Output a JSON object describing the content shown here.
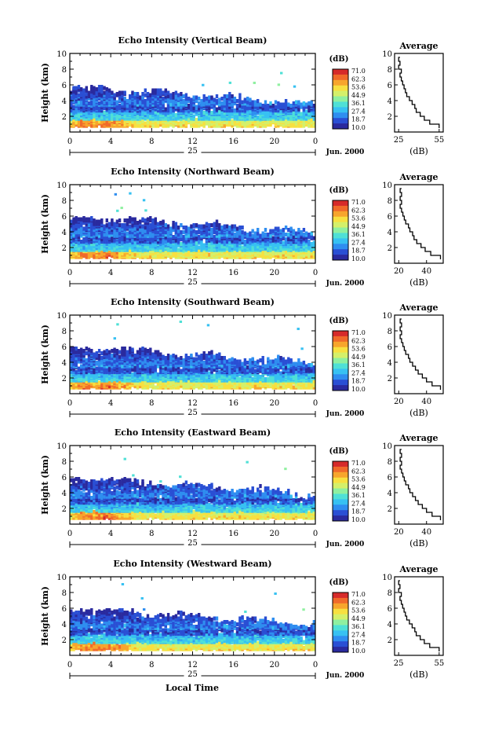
{
  "figure": {
    "xlabel": "Local Time"
  },
  "colorbar": {
    "unit": "(dB)",
    "ticks": [
      "71.0",
      "62.3",
      "53.6",
      "44.9",
      "36.1",
      "27.4",
      "18.7",
      "10.0"
    ],
    "vmin": 10.0,
    "vmax": 71.0,
    "colors": [
      "#2a2a9e",
      "#2a4fd4",
      "#2f8ef0",
      "#37c1f2",
      "#4fe0d6",
      "#8ff0a0",
      "#d4f06a",
      "#f7e040",
      "#f7a52c",
      "#f06a2a",
      "#d62a2a"
    ]
  },
  "chart_data": [
    {
      "type": "heatmap",
      "title": "Echo Intensity (Vertical Beam)",
      "ylabel": "Height (km)",
      "ylim": [
        0,
        10
      ],
      "yticks": [
        2,
        4,
        6,
        8,
        10
      ],
      "xticks": [
        "0",
        "4",
        "8",
        "12",
        "16",
        "20",
        "0"
      ],
      "date_day": "25",
      "date_month": "Jun. 2000",
      "colorbar_label": "(dB)",
      "profile": {
        "title": "Average",
        "xlabel": "(dB)",
        "xticks": [
          "25",
          "55"
        ],
        "xlim": [
          22,
          58
        ],
        "heights": [
          0.5,
          1.0,
          1.5,
          2.0,
          2.5,
          3.0,
          3.5,
          4.0,
          4.5,
          5.0,
          5.5,
          6.0,
          6.5,
          7.0,
          7.5,
          8.0,
          8.5,
          9.0,
          9.5
        ],
        "values": [
          55,
          48,
          44,
          41,
          38,
          37,
          35,
          33,
          31,
          30,
          29,
          28,
          27,
          26,
          27,
          25,
          26,
          25,
          26
        ]
      }
    },
    {
      "type": "heatmap",
      "title": "Echo Intensity (Northward Beam)",
      "ylabel": "Height (km)",
      "ylim": [
        0,
        10
      ],
      "yticks": [
        2,
        4,
        6,
        8,
        10
      ],
      "xticks": [
        "0",
        "4",
        "8",
        "12",
        "16",
        "20",
        "0"
      ],
      "date_day": "25",
      "date_month": "Jun. 2000",
      "colorbar_label": "(dB)",
      "profile": {
        "title": "Average",
        "xlabel": "(dB)",
        "xticks": [
          "20",
          "40"
        ],
        "xlim": [
          17,
          52
        ],
        "heights": [
          0.5,
          1.0,
          1.5,
          2.0,
          2.5,
          3.0,
          3.5,
          4.0,
          4.5,
          5.0,
          5.5,
          6.0,
          6.5,
          7.0,
          7.5,
          8.0,
          8.5,
          9.0,
          9.5
        ],
        "values": [
          50,
          43,
          39,
          36,
          33,
          31,
          30,
          28,
          27,
          25,
          24,
          23,
          22,
          21,
          22,
          21,
          22,
          21,
          22
        ]
      }
    },
    {
      "type": "heatmap",
      "title": "Echo Intensity (Southward Beam)",
      "ylabel": "Height (km)",
      "ylim": [
        0,
        10
      ],
      "yticks": [
        2,
        4,
        6,
        8,
        10
      ],
      "xticks": [
        "0",
        "4",
        "8",
        "12",
        "16",
        "20",
        "0"
      ],
      "date_day": "25",
      "date_month": "Jun. 2000",
      "colorbar_label": "(dB)",
      "profile": {
        "title": "Average",
        "xlabel": "(dB)",
        "xticks": [
          "20",
          "40"
        ],
        "xlim": [
          17,
          52
        ],
        "heights": [
          0.5,
          1.0,
          1.5,
          2.0,
          2.5,
          3.0,
          3.5,
          4.0,
          4.5,
          5.0,
          5.5,
          6.0,
          6.5,
          7.0,
          7.5,
          8.0,
          8.5,
          9.0,
          9.5
        ],
        "values": [
          50,
          44,
          40,
          37,
          34,
          32,
          30,
          28,
          27,
          25,
          24,
          23,
          22,
          21,
          22,
          21,
          22,
          21,
          22
        ]
      }
    },
    {
      "type": "heatmap",
      "title": "Echo Intensity (Eastward Beam)",
      "ylabel": "Height (km)",
      "ylim": [
        0,
        10
      ],
      "yticks": [
        2,
        4,
        6,
        8,
        10
      ],
      "xticks": [
        "0",
        "4",
        "8",
        "12",
        "16",
        "20",
        "0"
      ],
      "date_day": "25",
      "date_month": "Jun. 2000",
      "colorbar_label": "(dB)",
      "profile": {
        "title": "Average",
        "xlabel": "(dB)",
        "xticks": [
          "20",
          "40"
        ],
        "xlim": [
          17,
          52
        ],
        "heights": [
          0.5,
          1.0,
          1.5,
          2.0,
          2.5,
          3.0,
          3.5,
          4.0,
          4.5,
          5.0,
          5.5,
          6.0,
          6.5,
          7.0,
          7.5,
          8.0,
          8.5,
          9.0,
          9.5
        ],
        "values": [
          50,
          44,
          40,
          37,
          34,
          32,
          30,
          28,
          27,
          25,
          24,
          23,
          22,
          21,
          22,
          21,
          22,
          21,
          22
        ]
      }
    },
    {
      "type": "heatmap",
      "title": "Echo Intensity (Westward Beam)",
      "ylabel": "Height (km)",
      "ylim": [
        0,
        10
      ],
      "yticks": [
        2,
        4,
        6,
        8,
        10
      ],
      "xticks": [
        "0",
        "4",
        "8",
        "12",
        "16",
        "20",
        "0"
      ],
      "date_day": "25",
      "date_month": "Jun. 2000",
      "colorbar_label": "(dB)",
      "profile": {
        "title": "Average",
        "xlabel": "(dB)",
        "xticks": [
          "25",
          "55"
        ],
        "xlim": [
          22,
          58
        ],
        "heights": [
          0.5,
          1.0,
          1.5,
          2.0,
          2.5,
          3.0,
          3.5,
          4.0,
          4.5,
          5.0,
          5.5,
          6.0,
          6.5,
          7.0,
          7.5,
          8.0,
          8.5,
          9.0,
          9.5
        ],
        "values": [
          55,
          48,
          44,
          41,
          38,
          37,
          35,
          33,
          31,
          30,
          29,
          28,
          27,
          26,
          27,
          25,
          26,
          25,
          26
        ]
      }
    }
  ]
}
